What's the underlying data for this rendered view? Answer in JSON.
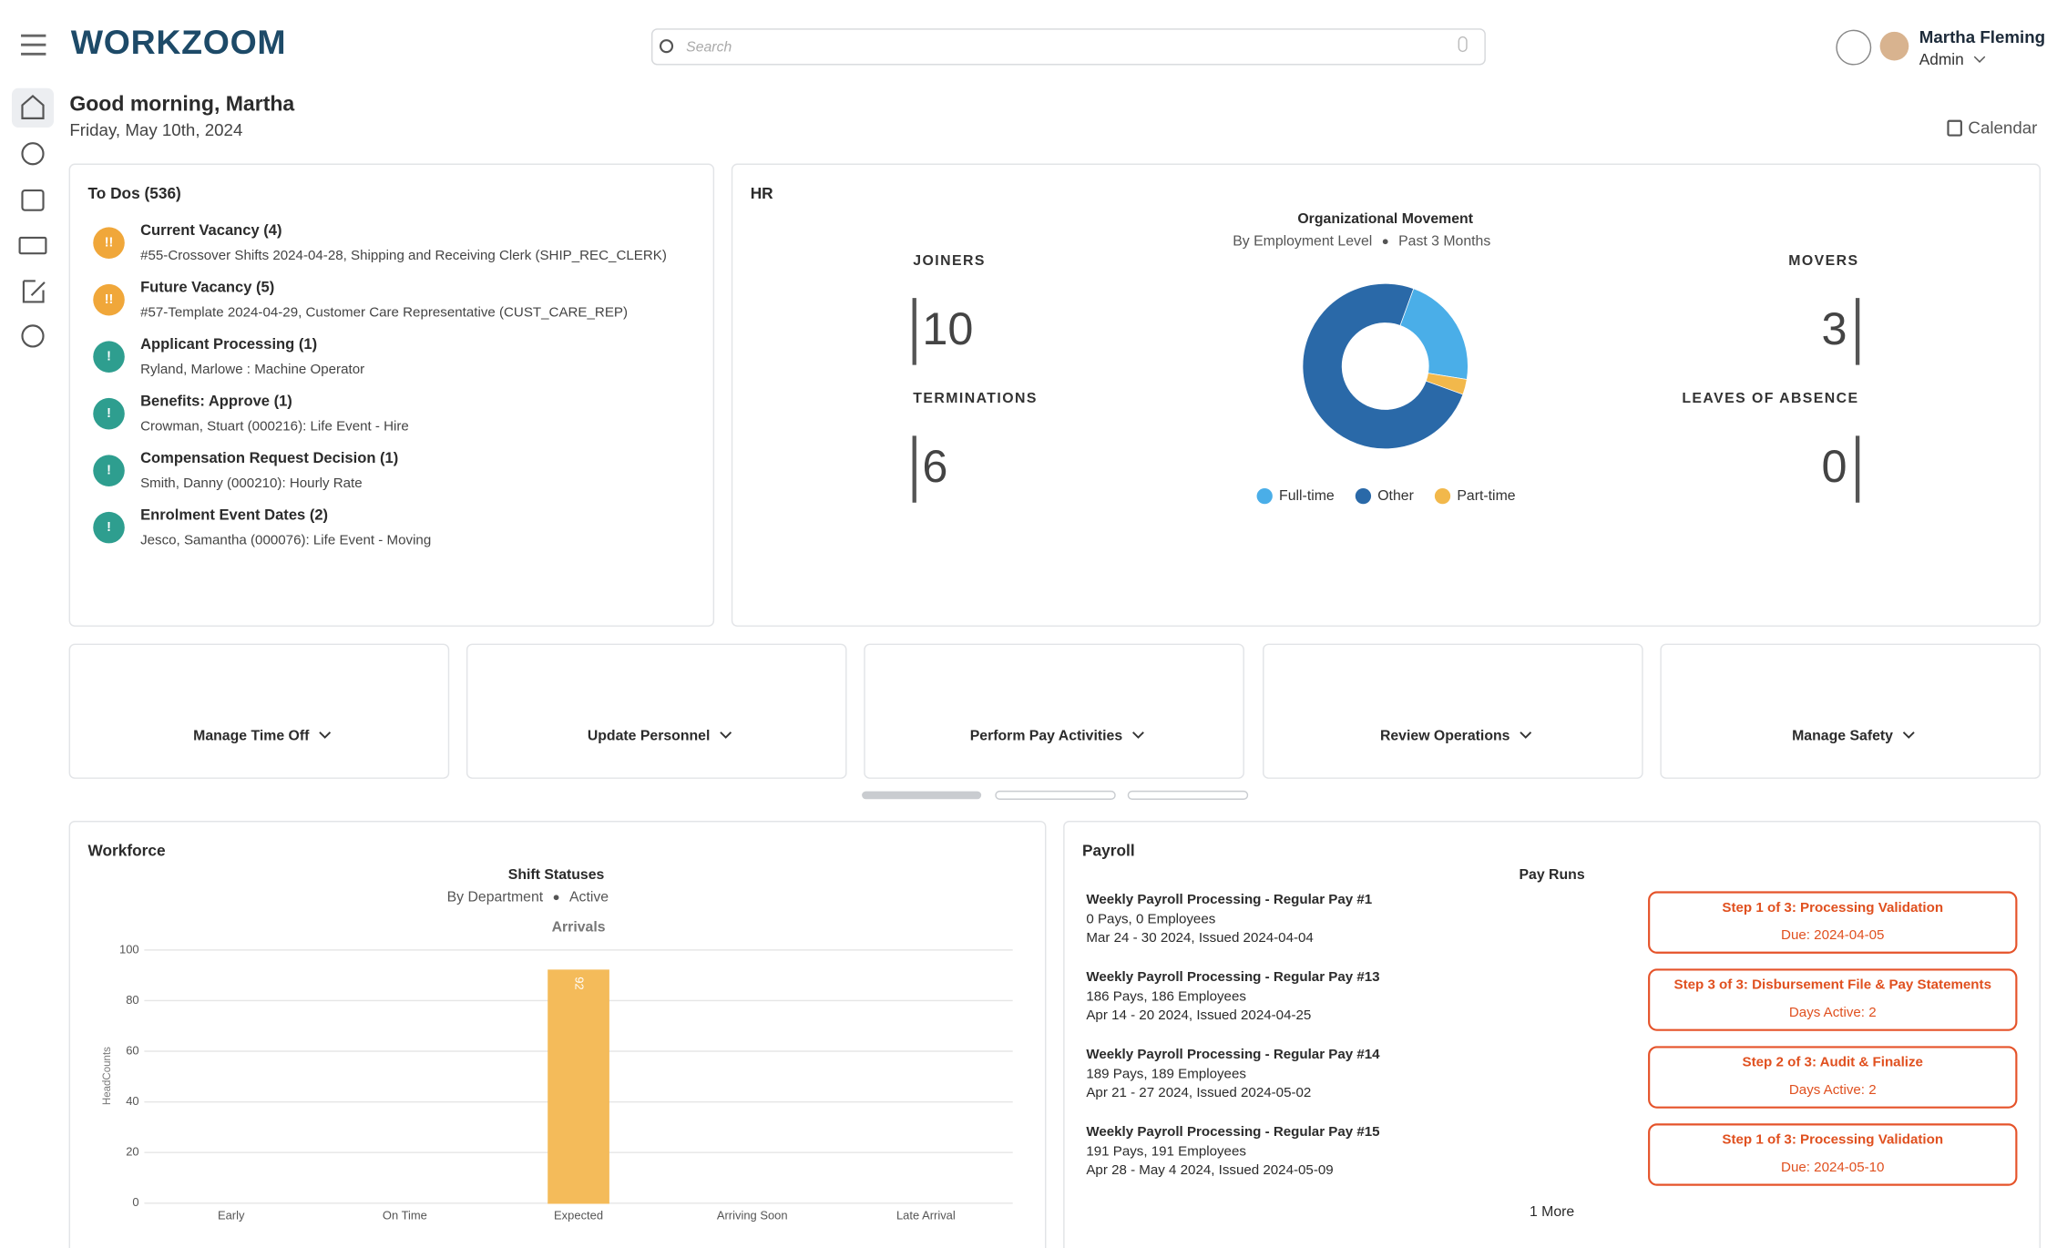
{
  "header": {
    "logo": "WORKZOOM",
    "search_placeholder": "Search",
    "user_name": "Martha Fleming",
    "user_role": "Admin"
  },
  "greeting": {
    "title": "Good morning, Martha",
    "date": "Friday, May 10th, 2024",
    "calendar": "Calendar"
  },
  "todos": {
    "title": "To Dos (536)",
    "items": [
      {
        "badge": "!!",
        "color": "#f0a73a",
        "title": "Current Vacancy (4)",
        "detail": "#55-Crossover Shifts 2024-04-28, Shipping and Receiving Clerk (SHIP_REC_CLERK)"
      },
      {
        "badge": "!!",
        "color": "#f0a73a",
        "title": "Future Vacancy (5)",
        "detail": "#57-Template 2024-04-29, Customer Care Representative (CUST_CARE_REP)"
      },
      {
        "badge": "!",
        "color": "#2e9e8f",
        "title": "Applicant Processing (1)",
        "detail": "Ryland, Marlowe : Machine Operator"
      },
      {
        "badge": "!",
        "color": "#2e9e8f",
        "title": "Benefits: Approve (1)",
        "detail": "Crowman, Stuart (000216): Life Event - Hire"
      },
      {
        "badge": "!",
        "color": "#2e9e8f",
        "title": "Compensation Request Decision (1)",
        "detail": "Smith, Danny (000210): Hourly Rate"
      },
      {
        "badge": "!",
        "color": "#2e9e8f",
        "title": "Enrolment Event Dates (2)",
        "detail": "Jesco, Samantha (000076): Life Event - Moving"
      }
    ]
  },
  "hr": {
    "title": "HR",
    "stats": [
      {
        "label": "JOINERS",
        "value": 10
      },
      {
        "label": "TERMINATIONS",
        "value": 6
      },
      {
        "label": "MOVERS",
        "value": 3
      },
      {
        "label": "LEAVES OF ABSENCE",
        "value": 0
      }
    ],
    "chart": {
      "type": "pie",
      "title": "Organizational Movement",
      "subtitle": [
        "By Employment Level",
        "Past 3 Months"
      ],
      "categories": [
        "Full-time",
        "Other",
        "Part-time"
      ],
      "values": [
        22,
        75,
        3
      ],
      "colors": [
        "#4aaee8",
        "#2a69a8",
        "#f2b84b"
      ]
    }
  },
  "quick_actions": [
    "Manage Time Off",
    "Update Personnel",
    "Perform Pay Activities",
    "Review Operations",
    "Manage Safety"
  ],
  "workforce": {
    "title": "Workforce",
    "chart": {
      "type": "bar",
      "title": "Shift Statuses",
      "subtitle": [
        "By Department",
        "Active"
      ],
      "axis_title": "Arrivals",
      "ylabel": "HeadCounts",
      "categories": [
        "Early",
        "On Time",
        "Expected",
        "Arriving Soon",
        "Late Arrival"
      ],
      "values": [
        0,
        0,
        92,
        0,
        0
      ],
      "colors": [
        "#7cc3e8",
        "#3a7fc1",
        "#f4bb5a",
        "#f08a9a",
        "#e35b5b"
      ],
      "ylim": [
        0,
        100
      ],
      "yticks": [
        0,
        20,
        40,
        60,
        80,
        100
      ],
      "grid": true
    }
  },
  "payroll": {
    "title": "Payroll",
    "subtitle": "Pay Runs",
    "runs": [
      {
        "title": "Weekly Payroll Processing - Regular Pay #1",
        "pays": "0 Pays, 0 Employees",
        "period": "Mar 24 - 30 2024, Issued 2024-04-04",
        "step": "Step 1 of 3: Processing Validation",
        "status": "Due: 2024-04-05"
      },
      {
        "title": "Weekly Payroll Processing - Regular Pay #13",
        "pays": "186 Pays, 186 Employees",
        "period": "Apr 14 - 20 2024, Issued 2024-04-25",
        "step": "Step 3 of 3: Disbursement File & Pay Statements",
        "status": "Days Active: 2"
      },
      {
        "title": "Weekly Payroll Processing - Regular Pay #14",
        "pays": "189 Pays, 189 Employees",
        "period": "Apr 21 - 27 2024, Issued 2024-05-02",
        "step": "Step 2 of 3: Audit & Finalize",
        "status": "Days Active: 2"
      },
      {
        "title": "Weekly Payroll Processing - Regular Pay #15",
        "pays": "191 Pays, 191 Employees",
        "period": "Apr 28 - May 4 2024, Issued 2024-05-09",
        "step": "Step 1 of 3: Processing Validation",
        "status": "Due: 2024-05-10"
      }
    ],
    "more": "1 More"
  }
}
